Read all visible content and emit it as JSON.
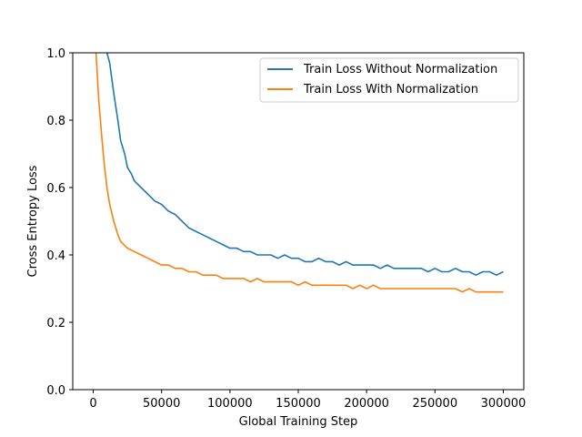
{
  "chart_data": {
    "type": "line",
    "title": "",
    "xlabel": "Global Training Step",
    "ylabel": "Cross Entropy Loss",
    "xlim": [
      -15000,
      315000
    ],
    "ylim": [
      0.0,
      1.0
    ],
    "xticks": [
      0,
      50000,
      100000,
      150000,
      200000,
      250000,
      300000
    ],
    "xtick_labels": [
      "0",
      "50000",
      "100000",
      "150000",
      "200000",
      "250000",
      "300000"
    ],
    "yticks": [
      0.0,
      0.2,
      0.4,
      0.6,
      0.8,
      1.0
    ],
    "ytick_labels": [
      "0.0",
      "0.2",
      "0.4",
      "0.6",
      "0.8",
      "1.0"
    ],
    "grid": false,
    "legend_position": "upper-right",
    "series": [
      {
        "name": "Train Loss Without Normalization",
        "color": "#1f77b4",
        "x": [
          10000,
          12000,
          15000,
          18000,
          20000,
          23000,
          25000,
          28000,
          30000,
          35000,
          40000,
          45000,
          50000,
          55000,
          60000,
          65000,
          70000,
          75000,
          80000,
          85000,
          90000,
          95000,
          100000,
          105000,
          110000,
          115000,
          120000,
          125000,
          130000,
          135000,
          140000,
          145000,
          150000,
          155000,
          160000,
          165000,
          170000,
          175000,
          180000,
          185000,
          190000,
          195000,
          200000,
          205000,
          210000,
          215000,
          220000,
          225000,
          230000,
          235000,
          240000,
          245000,
          250000,
          255000,
          260000,
          265000,
          270000,
          275000,
          280000,
          285000,
          290000,
          295000,
          300000
        ],
        "y": [
          1.0,
          0.97,
          0.88,
          0.8,
          0.74,
          0.7,
          0.66,
          0.64,
          0.62,
          0.6,
          0.58,
          0.56,
          0.55,
          0.53,
          0.52,
          0.5,
          0.48,
          0.47,
          0.46,
          0.45,
          0.44,
          0.43,
          0.42,
          0.42,
          0.41,
          0.41,
          0.4,
          0.4,
          0.4,
          0.39,
          0.4,
          0.39,
          0.39,
          0.38,
          0.38,
          0.39,
          0.38,
          0.38,
          0.37,
          0.38,
          0.37,
          0.37,
          0.37,
          0.37,
          0.36,
          0.37,
          0.36,
          0.36,
          0.36,
          0.36,
          0.36,
          0.35,
          0.36,
          0.35,
          0.35,
          0.36,
          0.35,
          0.35,
          0.34,
          0.35,
          0.35,
          0.34,
          0.35
        ]
      },
      {
        "name": "Train Loss With Normalization",
        "color": "#ff7f0e",
        "x": [
          2000,
          4000,
          6000,
          8000,
          10000,
          12000,
          15000,
          18000,
          20000,
          25000,
          30000,
          35000,
          40000,
          45000,
          50000,
          55000,
          60000,
          65000,
          70000,
          75000,
          80000,
          85000,
          90000,
          95000,
          100000,
          105000,
          110000,
          115000,
          120000,
          125000,
          130000,
          135000,
          140000,
          145000,
          150000,
          155000,
          160000,
          165000,
          170000,
          175000,
          180000,
          185000,
          190000,
          195000,
          200000,
          205000,
          210000,
          215000,
          220000,
          225000,
          230000,
          235000,
          240000,
          245000,
          250000,
          255000,
          260000,
          265000,
          270000,
          275000,
          280000,
          285000,
          290000,
          295000,
          300000
        ],
        "y": [
          1.0,
          0.86,
          0.76,
          0.67,
          0.6,
          0.55,
          0.5,
          0.46,
          0.44,
          0.42,
          0.41,
          0.4,
          0.39,
          0.38,
          0.37,
          0.37,
          0.36,
          0.36,
          0.35,
          0.35,
          0.34,
          0.34,
          0.34,
          0.33,
          0.33,
          0.33,
          0.33,
          0.32,
          0.33,
          0.32,
          0.32,
          0.32,
          0.32,
          0.32,
          0.31,
          0.32,
          0.31,
          0.31,
          0.31,
          0.31,
          0.31,
          0.31,
          0.3,
          0.31,
          0.3,
          0.31,
          0.3,
          0.3,
          0.3,
          0.3,
          0.3,
          0.3,
          0.3,
          0.3,
          0.3,
          0.3,
          0.3,
          0.3,
          0.29,
          0.3,
          0.29,
          0.29,
          0.29,
          0.29,
          0.29
        ]
      }
    ]
  }
}
